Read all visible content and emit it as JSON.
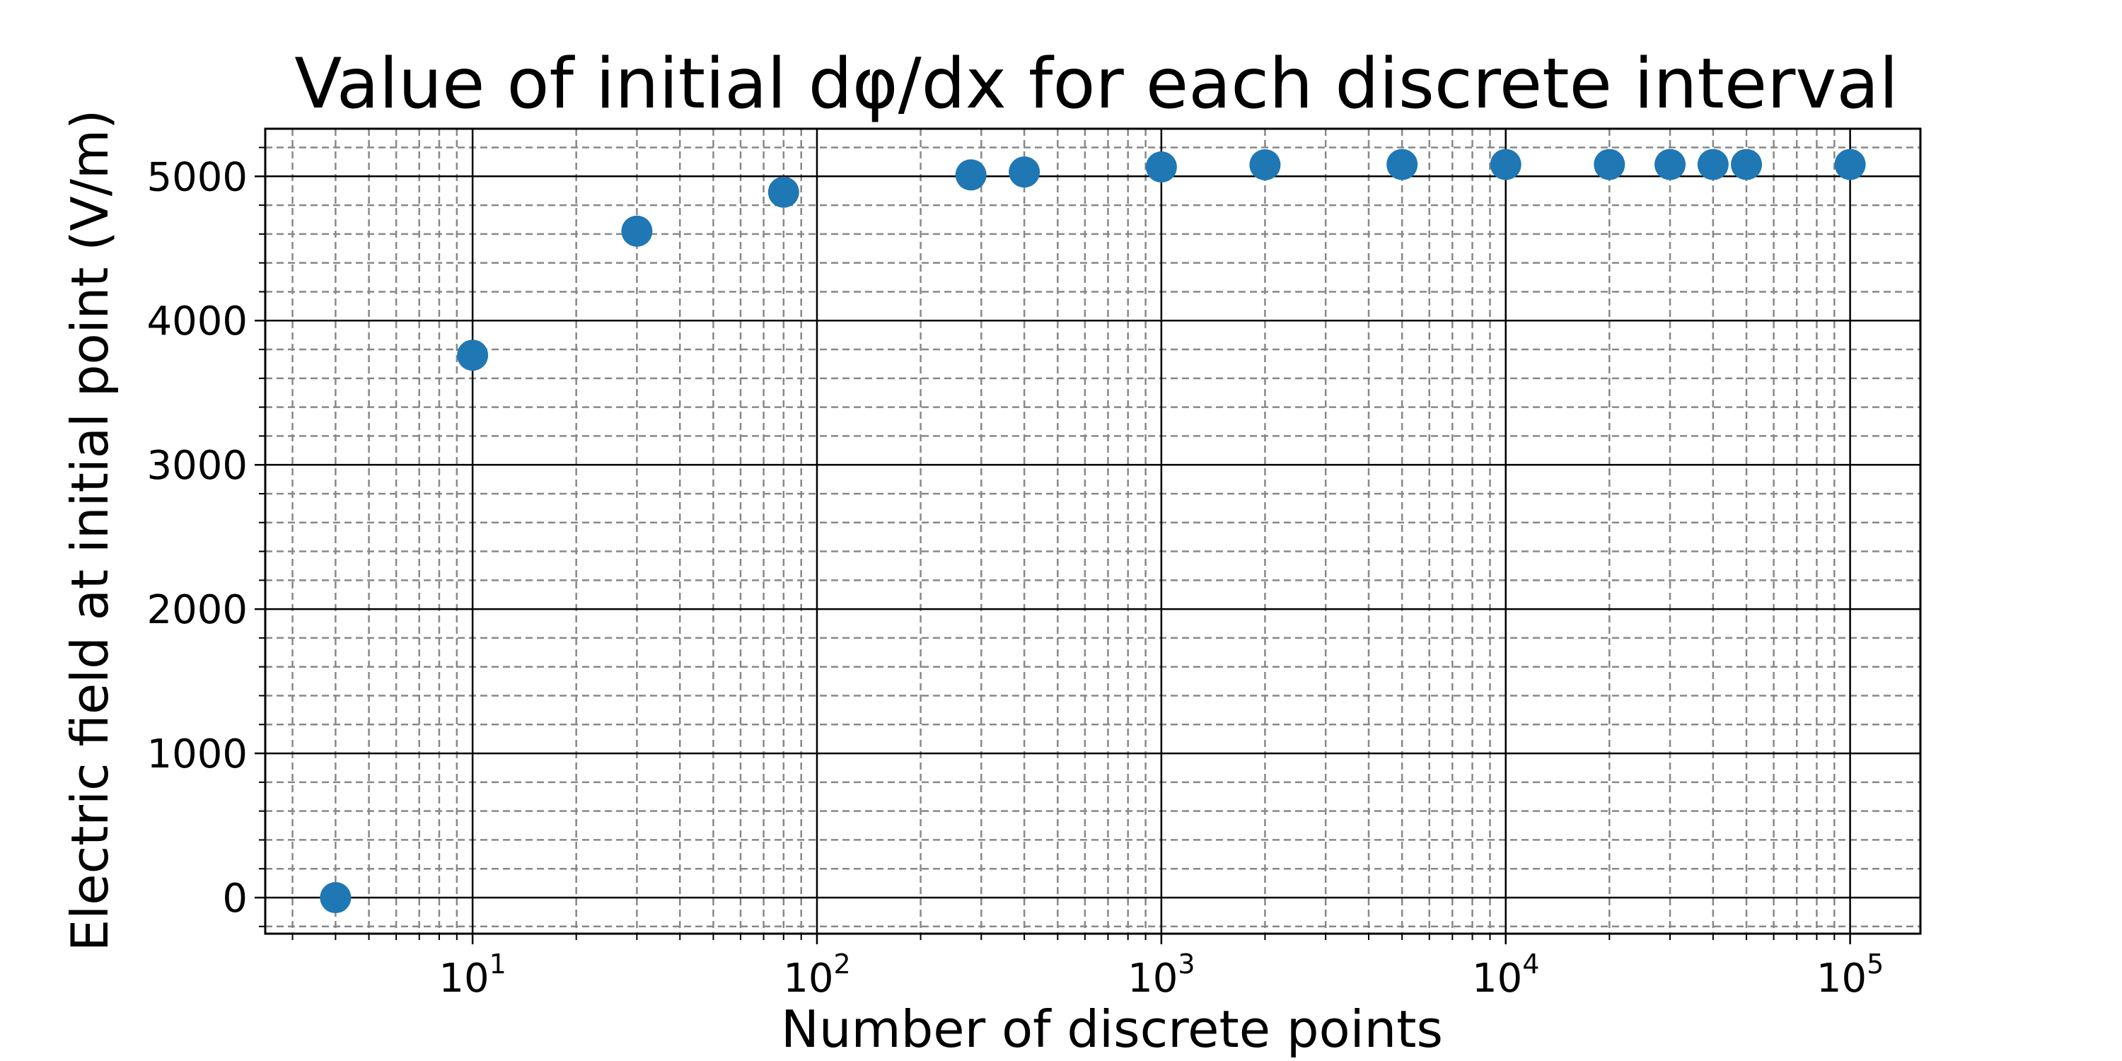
{
  "chart_data": {
    "type": "scatter",
    "title": "Value of initial dφ/dx for each discrete interval",
    "xlabel": "Number of discrete points",
    "ylabel": "Electric field at initial point (V/m)",
    "x_scale": "log",
    "xlim": [
      2.5,
      160000
    ],
    "ylim": [
      -250,
      5330
    ],
    "x_ticks": [
      {
        "base": "10",
        "exp": "1",
        "value": 10
      },
      {
        "base": "10",
        "exp": "2",
        "value": 100
      },
      {
        "base": "10",
        "exp": "3",
        "value": 1000
      },
      {
        "base": "10",
        "exp": "4",
        "value": 10000
      },
      {
        "base": "10",
        "exp": "5",
        "value": 100000
      }
    ],
    "y_ticks": [
      {
        "label": "0",
        "value": 0
      },
      {
        "label": "1000",
        "value": 1000
      },
      {
        "label": "2000",
        "value": 2000
      },
      {
        "label": "3000",
        "value": 3000
      },
      {
        "label": "4000",
        "value": 4000
      },
      {
        "label": "5000",
        "value": 5000
      }
    ],
    "y_minor_step": 200,
    "grid": {
      "major": "solid",
      "minor": "dashed"
    },
    "marker_color": "#1f77b4",
    "points": [
      {
        "x": 4,
        "y": 0
      },
      {
        "x": 10,
        "y": 3760
      },
      {
        "x": 30,
        "y": 4620
      },
      {
        "x": 80,
        "y": 4890
      },
      {
        "x": 280,
        "y": 5010
      },
      {
        "x": 400,
        "y": 5030
      },
      {
        "x": 1000,
        "y": 5065
      },
      {
        "x": 2000,
        "y": 5080
      },
      {
        "x": 5000,
        "y": 5082
      },
      {
        "x": 10000,
        "y": 5082
      },
      {
        "x": 20000,
        "y": 5082
      },
      {
        "x": 30000,
        "y": 5082
      },
      {
        "x": 40000,
        "y": 5082
      },
      {
        "x": 50000,
        "y": 5082
      },
      {
        "x": 100000,
        "y": 5082
      }
    ]
  }
}
